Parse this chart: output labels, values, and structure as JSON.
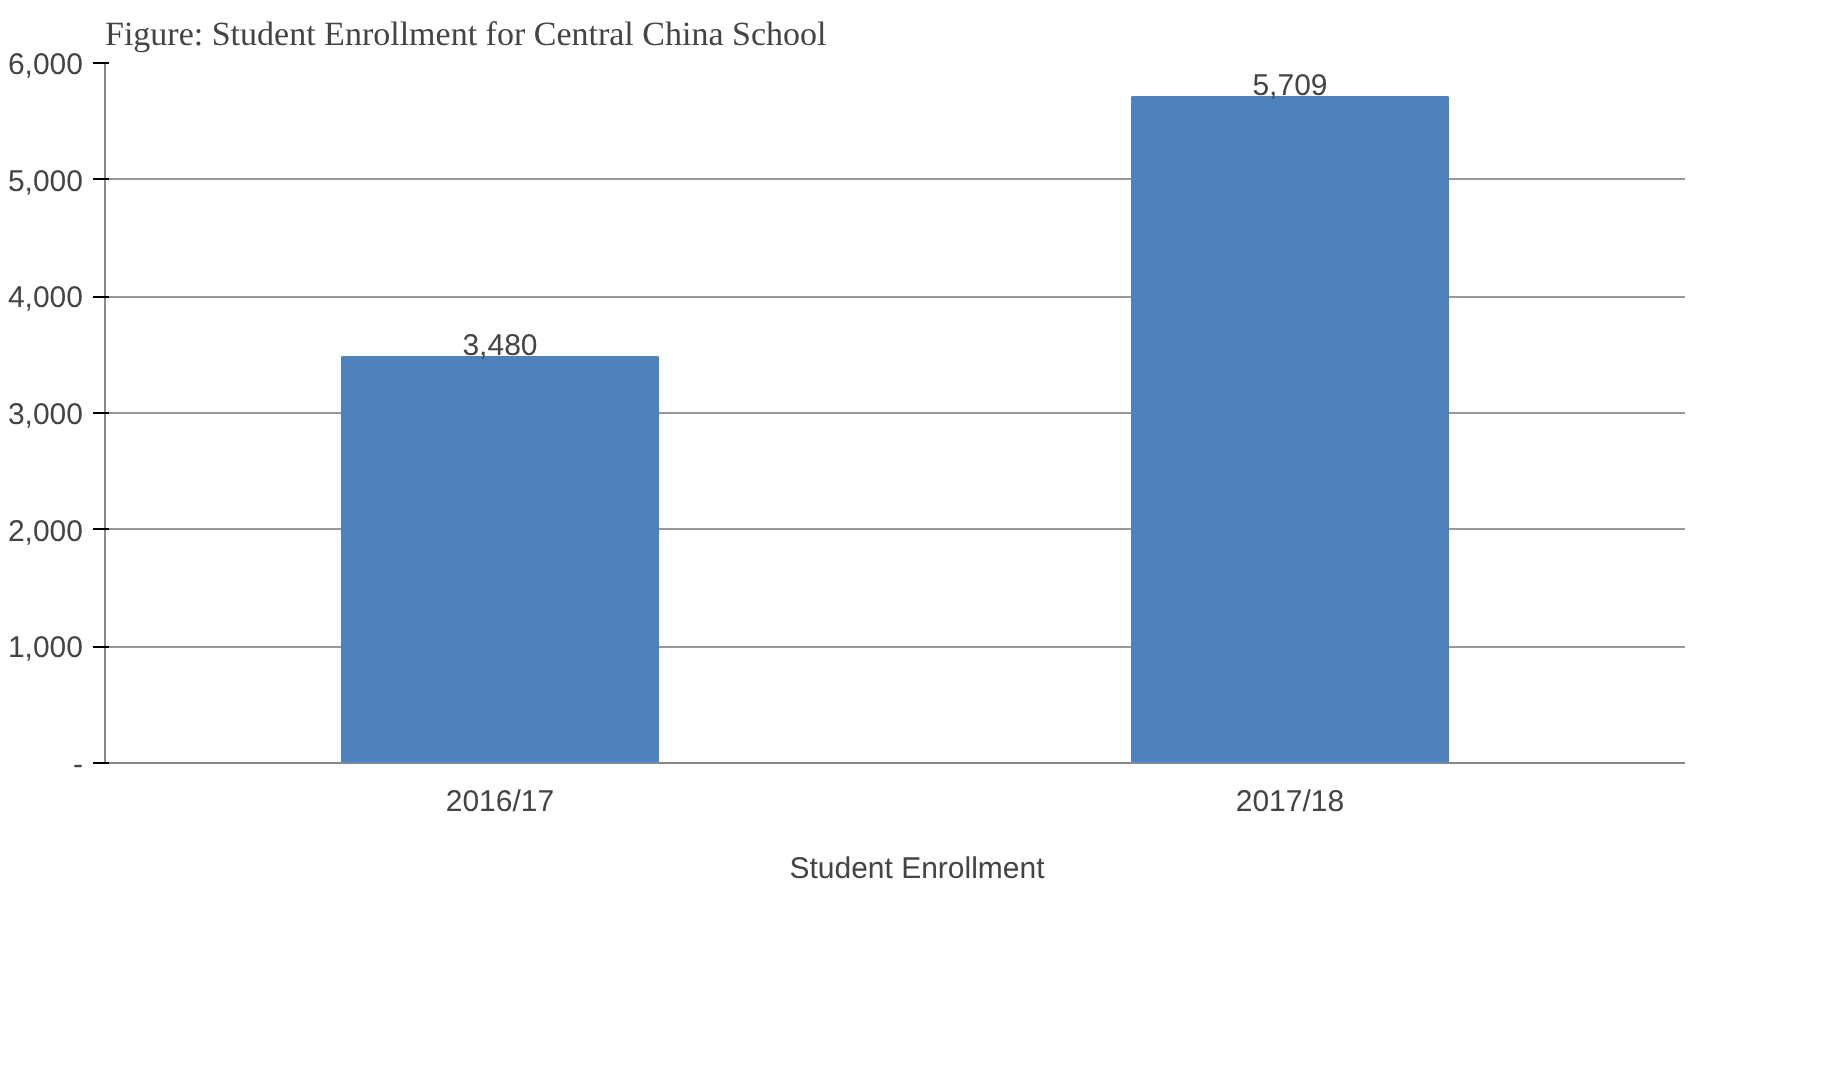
{
  "chart_data": {
    "type": "bar",
    "title": "Figure: Student Enrollment for Central China School",
    "categories": [
      "2016/17",
      "2017/18"
    ],
    "series": [
      {
        "name": "Student Enrollment",
        "color": "#4f81bd",
        "values": [
          3480,
          5709
        ],
        "value_labels": [
          "3,480",
          "5,709"
        ]
      }
    ],
    "ylim": [
      0,
      6000
    ],
    "yticks": [
      {
        "value": 0,
        "label": "-"
      },
      {
        "value": 1000,
        "label": "1,000"
      },
      {
        "value": 2000,
        "label": "2,000"
      },
      {
        "value": 3000,
        "label": "3,000"
      },
      {
        "value": 4000,
        "label": "4,000"
      },
      {
        "value": 5000,
        "label": "5,000"
      },
      {
        "value": 6000,
        "label": "6,000"
      }
    ],
    "grid": "y",
    "legend": "bottom",
    "data_labels": true
  }
}
